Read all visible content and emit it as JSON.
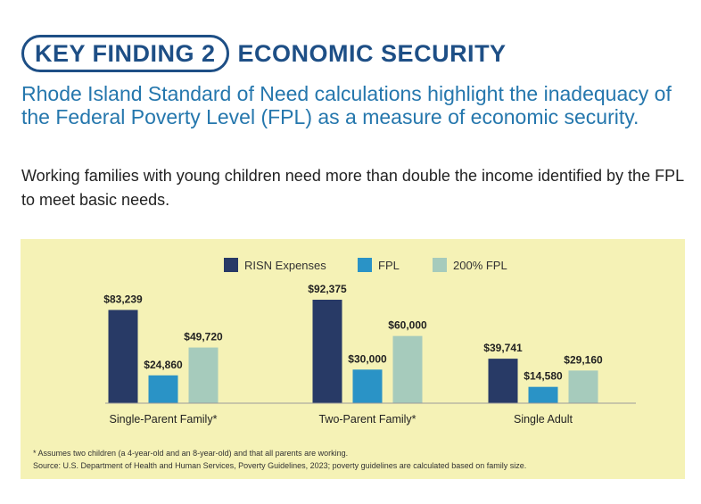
{
  "header": {
    "key_label": "KEY FINDING 2",
    "topic": "ECONOMIC SECURITY"
  },
  "headline": "Rhode Island Standard of Need calculations highlight the inadequacy of the Federal Poverty Level (FPL) as a measure of economic security.",
  "subhead": "Working families with young children need more than double the income identified by the FPL to meet basic needs.",
  "footnotes": {
    "assumption": "* Assumes two children (a 4-year-old and an 8-year-old) and that all parents are working.",
    "source": "Source: U.S. Department of Health and Human Services, Poverty Guidelines, 2023; poverty guidelines are calculated based on family size."
  },
  "chart_data": {
    "type": "bar",
    "title": "",
    "xlabel": "",
    "ylabel": "",
    "ylim": [
      0,
      100000
    ],
    "grid": false,
    "legend_position": "top-center",
    "categories": [
      "Single-Parent Family*",
      "Two-Parent Family*",
      "Single Adult"
    ],
    "series": [
      {
        "name": "RISN Expenses",
        "color": "#283a66",
        "values": [
          83239,
          92375,
          39741
        ],
        "labels": [
          "$83,239",
          "$92,375",
          "$39,741"
        ]
      },
      {
        "name": "FPL",
        "color": "#2a93c6",
        "values": [
          24860,
          30000,
          14580
        ],
        "labels": [
          "$24,860",
          "$30,000",
          "$14,580"
        ]
      },
      {
        "name": "200% FPL",
        "color": "#a6cbbc",
        "values": [
          49720,
          60000,
          29160
        ],
        "labels": [
          "$49,720",
          "$60,000",
          "$29,160"
        ]
      }
    ]
  }
}
